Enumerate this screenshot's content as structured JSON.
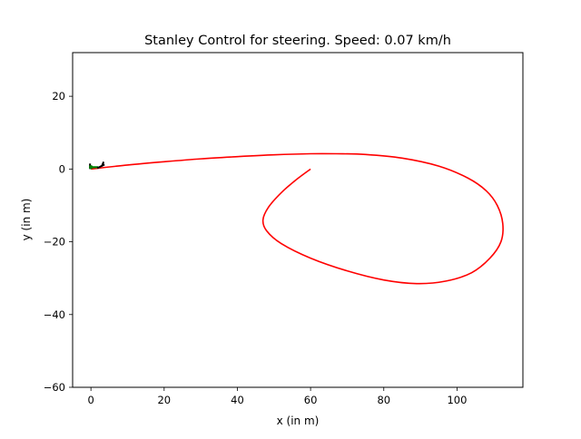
{
  "chart_data": {
    "type": "line",
    "title": "Stanley Control for steering. Speed: 0.07 km/h",
    "xlabel": "x (in m)",
    "ylabel": "y (in m)",
    "xlim": [
      -5,
      118
    ],
    "ylim": [
      -60,
      32
    ],
    "xticks": [
      0,
      20,
      40,
      60,
      80,
      100
    ],
    "yticks": [
      -60,
      -40,
      -20,
      0,
      20
    ],
    "grid": false,
    "legend": "none",
    "colors": {
      "path": "#ff0000",
      "vehicle_marker": "#008000",
      "vehicle_body": "#000000"
    },
    "series": [
      {
        "x": [
          0,
          10,
          20,
          30,
          40,
          50,
          60,
          67,
          75,
          85,
          95,
          103,
          108,
          111,
          112.5,
          112,
          109,
          104,
          97,
          89,
          80,
          70,
          60,
          52,
          48,
          47,
          48.5,
          52,
          56,
          60
        ],
        "y": [
          0,
          1.1,
          2.0,
          2.8,
          3.4,
          3.9,
          4.2,
          4.2,
          4.0,
          3.0,
          0.8,
          -2.5,
          -6,
          -10,
          -15,
          -20,
          -24.5,
          -28.5,
          -30.8,
          -31.5,
          -30.5,
          -28,
          -24.5,
          -20.5,
          -17,
          -14,
          -10.5,
          -6.5,
          -3,
          0
        ]
      }
    ],
    "vehicle": {
      "x": 0,
      "y": 0.5
    }
  }
}
